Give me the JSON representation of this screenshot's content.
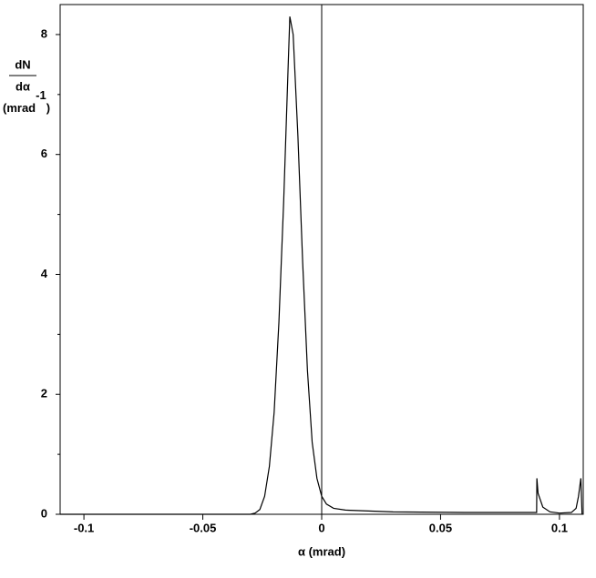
{
  "chart_data": {
    "type": "line",
    "x_label": "α  (mrad)",
    "y_label": {
      "numerator": "dN",
      "denominator": "dα",
      "unit": "(mrad",
      "exponent": "-1",
      "close": ")"
    },
    "xlim": [
      -0.11,
      0.11
    ],
    "ylim": [
      0,
      8.5
    ],
    "xticks": [
      -0.1,
      -0.05,
      0,
      0.05,
      0.1
    ],
    "yticks": [
      0,
      2,
      4,
      6,
      8
    ],
    "yminor_ticks": [
      1,
      3,
      5,
      7
    ],
    "grid": false,
    "x": [
      -0.11,
      -0.03,
      -0.028,
      -0.026,
      -0.024,
      -0.022,
      -0.02,
      -0.018,
      -0.016,
      -0.014,
      -0.0134,
      -0.012,
      -0.01,
      -0.008,
      -0.006,
      -0.004,
      -0.002,
      0,
      0.002,
      0.005,
      0.01,
      0.03,
      0.06,
      0.0904,
      0.0905,
      0.091,
      0.093,
      0.096,
      0.1,
      0.105,
      0.107,
      0.108,
      0.109,
      0.1095
    ],
    "series": [
      {
        "name": "dN/dα",
        "color": "#000000",
        "values": [
          0,
          0,
          0.02,
          0.08,
          0.3,
          0.8,
          1.7,
          3.2,
          5.2,
          7.6,
          8.3,
          8.0,
          6.3,
          4.2,
          2.4,
          1.2,
          0.6,
          0.3,
          0.17,
          0.1,
          0.07,
          0.04,
          0.03,
          0.03,
          0.6,
          0.35,
          0.12,
          0.04,
          0.02,
          0.03,
          0.1,
          0.3,
          0.6,
          0
        ]
      }
    ]
  }
}
